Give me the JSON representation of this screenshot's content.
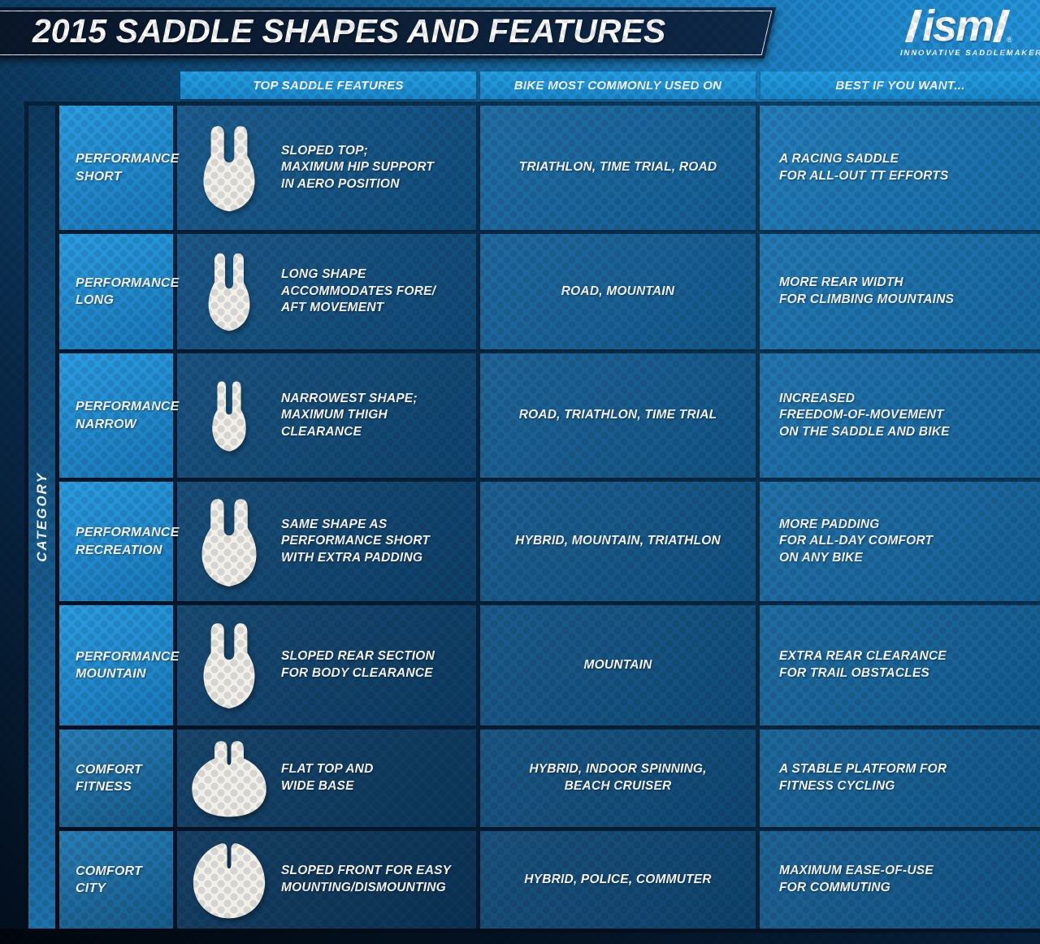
{
  "header": {
    "title": "2015 SADDLE SHAPES AND FEATURES",
    "logo": {
      "brand": "ism",
      "registered": "®",
      "tagline": "INNOVATIVE SADDLEMAKER"
    }
  },
  "columns": {
    "features": "TOP SADDLE FEATURES",
    "bike": "BIKE MOST COMMONLY USED ON",
    "best": "BEST IF YOU WANT..."
  },
  "category_axis_label": "CATEGORY",
  "colors": {
    "brand_blue_light": "#24A0E4",
    "brand_blue_dark": "#1B89CC",
    "performance_category_blue": "#1E93DA",
    "comfort_category_blue": "#1C6FA5",
    "header_bar_navy": "#0B1B33",
    "icon_white": "#F2F0E8"
  },
  "rows": [
    {
      "group": "performance",
      "category": "PERFORMANCE\nSHORT",
      "icon": "saddle-performance-short-icon",
      "features": "SLOPED TOP;\nMAXIMUM HIP SUPPORT\nIN AERO POSITION",
      "bike": "TRIATHLON, TIME TRIAL, ROAD",
      "best": "A RACING SADDLE\nFOR ALL-OUT TT EFFORTS"
    },
    {
      "group": "performance",
      "category": "PERFORMANCE\nLONG",
      "icon": "saddle-performance-long-icon",
      "features": "LONG SHAPE\nACCOMMODATES FORE/\nAFT MOVEMENT",
      "bike": "ROAD, MOUNTAIN",
      "best": "MORE REAR WIDTH\nFOR CLIMBING MOUNTAINS"
    },
    {
      "group": "performance",
      "category": "PERFORMANCE\nNARROW",
      "icon": "saddle-performance-narrow-icon",
      "features": "NARROWEST SHAPE;\nMAXIMUM THIGH\nCLEARANCE",
      "bike": "ROAD, TRIATHLON, TIME TRIAL",
      "best": "INCREASED\nFREEDOM-OF-MOVEMENT\nON THE SADDLE AND BIKE"
    },
    {
      "group": "performance",
      "category": "PERFORMANCE\nRECREATION",
      "icon": "saddle-performance-recreation-icon",
      "features": "SAME SHAPE AS\nPERFORMANCE SHORT\nWITH EXTRA PADDING",
      "bike": "HYBRID, MOUNTAIN, TRIATHLON",
      "best": "MORE PADDING\nFOR ALL-DAY COMFORT\nON ANY BIKE"
    },
    {
      "group": "performance",
      "category": "PERFORMANCE\nMOUNTAIN",
      "icon": "saddle-performance-mountain-icon",
      "features": "SLOPED REAR SECTION\nFOR BODY CLEARANCE",
      "bike": "MOUNTAIN",
      "best": "EXTRA REAR CLEARANCE\nFOR TRAIL OBSTACLES"
    },
    {
      "group": "comfort",
      "category": "COMFORT\nFITNESS",
      "icon": "saddle-comfort-fitness-icon",
      "features": "FLAT TOP AND\nWIDE BASE",
      "bike": "HYBRID, INDOOR SPINNING,\nBEACH CRUISER",
      "best": "A STABLE PLATFORM FOR\nFITNESS CYCLING"
    },
    {
      "group": "comfort",
      "category": "COMFORT\nCITY",
      "icon": "saddle-comfort-city-icon",
      "features": "SLOPED FRONT FOR EASY\nMOUNTING/DISMOUNTING",
      "bike": "HYBRID, POLICE, COMMUTER",
      "best": "MAXIMUM EASE-OF-USE\nFOR COMMUTING"
    }
  ]
}
